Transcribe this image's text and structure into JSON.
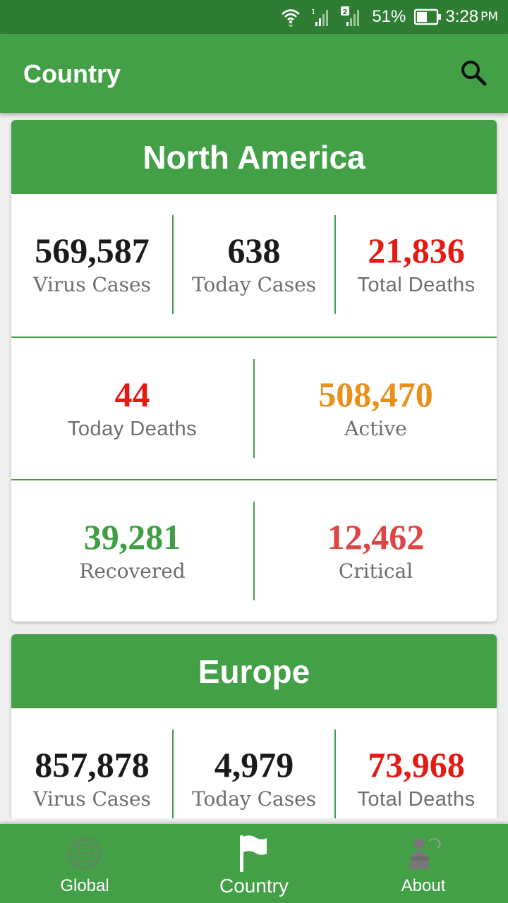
{
  "status_bar": {
    "battery": "51%",
    "time": "3:28",
    "ampm": "PM",
    "sim1": "1",
    "sim2": "2"
  },
  "app_bar": {
    "title": "Country"
  },
  "colors": {
    "primary": "#43a047",
    "dark": "#2f7d32",
    "red": "#e31b14",
    "orange": "#e8901a",
    "green": "#3f9d44",
    "critical": "#de4646",
    "black": "#1a1a1a"
  },
  "cards": [
    {
      "region": "North America",
      "virus_cases": {
        "value": "569,587",
        "label": "Virus Cases"
      },
      "today_cases": {
        "value": "638",
        "label": "Today Cases"
      },
      "total_deaths": {
        "value": "21,836",
        "label": "Total Deaths"
      },
      "today_deaths": {
        "value": "44",
        "label": "Today Deaths"
      },
      "active": {
        "value": "508,470",
        "label": "Active"
      },
      "recovered": {
        "value": "39,281",
        "label": "Recovered"
      },
      "critical": {
        "value": "12,462",
        "label": "Critical"
      }
    },
    {
      "region": "Europe",
      "virus_cases": {
        "value": "857,878",
        "label": "Virus Cases"
      },
      "today_cases": {
        "value": "4,979",
        "label": "Today Cases"
      },
      "total_deaths": {
        "value": "73,968",
        "label": "Total Deaths"
      }
    }
  ],
  "bottom_nav": {
    "items": [
      {
        "label": "Global",
        "icon": "globe-icon"
      },
      {
        "label": "Country",
        "icon": "flag-icon",
        "active": true
      },
      {
        "label": "About",
        "icon": "person-icon"
      }
    ]
  }
}
